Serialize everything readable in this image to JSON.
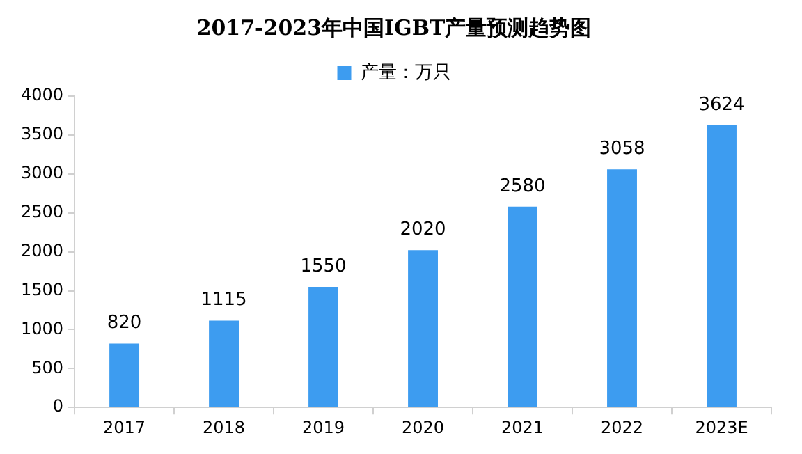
{
  "chart_data": {
    "type": "bar",
    "title": "2017-2023年中国IGBT产量预测趋势图",
    "categories": [
      "2017",
      "2018",
      "2019",
      "2020",
      "2021",
      "2022",
      "2023E"
    ],
    "series": [
      {
        "name": "产量：万只",
        "color": "#3d9cf0",
        "values": [
          820,
          1115,
          1550,
          2020,
          2580,
          3058,
          3624
        ]
      }
    ],
    "ylim": [
      0,
      4000
    ],
    "yticks": [
      0,
      500,
      1000,
      1500,
      2000,
      2500,
      3000,
      3500,
      4000
    ],
    "grid": false,
    "legend": "top",
    "data_labels": true
  }
}
